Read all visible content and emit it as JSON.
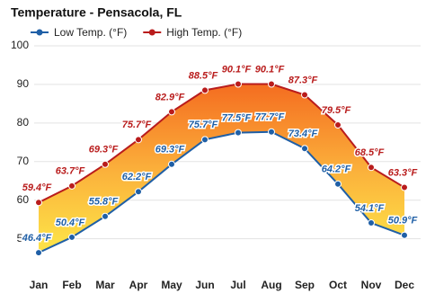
{
  "chart_data": {
    "type": "line",
    "title": "Temperature - Pensacola, FL",
    "categories": [
      "Jan",
      "Feb",
      "Mar",
      "Apr",
      "May",
      "Jun",
      "Jul",
      "Aug",
      "Sep",
      "Oct",
      "Nov",
      "Dec"
    ],
    "series": [
      {
        "name": "Low Temp. (°F)",
        "color": "#1f5fa6",
        "values": [
          46.4,
          50.4,
          55.8,
          62.2,
          69.3,
          75.7,
          77.5,
          77.7,
          73.4,
          64.2,
          54.1,
          50.9
        ],
        "value_labels": [
          "46.4°F",
          "50.4°F",
          "55.8°F",
          "62.2°F",
          "69.3°F",
          "75.7°F",
          "77.5°F",
          "77.7°F",
          "73.4°F",
          "64.2°F",
          "54.1°F",
          "50.9°F"
        ]
      },
      {
        "name": "High Temp. (°F)",
        "color": "#b91c1c",
        "values": [
          59.4,
          63.7,
          69.3,
          75.7,
          82.9,
          88.5,
          90.1,
          90.1,
          87.3,
          79.5,
          68.5,
          63.3
        ],
        "value_labels": [
          "59.4°F",
          "63.7°F",
          "69.3°F",
          "75.7°F",
          "82.9°F",
          "88.5°F",
          "90.1°F",
          "90.1°F",
          "87.3°F",
          "79.5°F",
          "68.5°F",
          "63.3°F"
        ]
      }
    ],
    "ylim": [
      42,
      100
    ],
    "yticks": [
      50,
      60,
      70,
      80,
      90,
      100
    ],
    "grid": true
  }
}
